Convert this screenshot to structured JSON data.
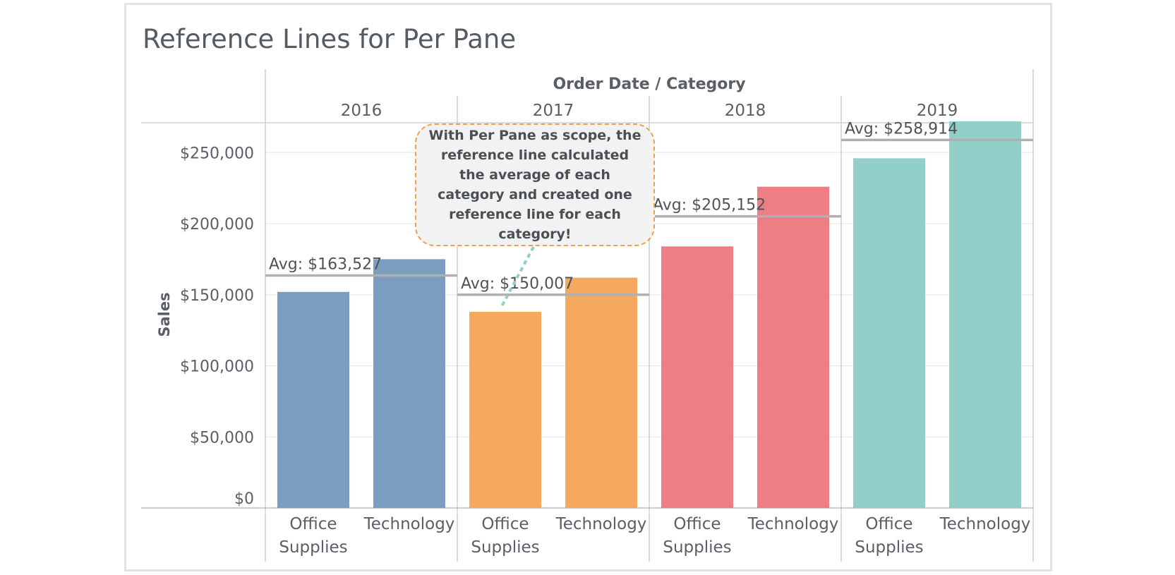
{
  "chart_data": {
    "type": "bar",
    "title": "Reference Lines for Per Pane",
    "column_header": "Order Date  /  Category",
    "xlabel": "",
    "ylabel": "Sales",
    "ylim": [
      0,
      270000
    ],
    "y_ticks": [
      {
        "value": 0,
        "label": "$0"
      },
      {
        "value": 50000,
        "label": "$50,000"
      },
      {
        "value": 100000,
        "label": "$100,000"
      },
      {
        "value": 150000,
        "label": "$150,000"
      },
      {
        "value": 200000,
        "label": "$200,000"
      },
      {
        "value": 250000,
        "label": "$250,000"
      }
    ],
    "grid": true,
    "panes": [
      {
        "year": "2016",
        "color": "#7b9ec0",
        "bars": [
          {
            "category": "Office Supplies",
            "value": 152000
          },
          {
            "category": "Technology",
            "value": 175000
          }
        ],
        "average": 163527,
        "average_label": "Avg: $163,527"
      },
      {
        "year": "2017",
        "color": "#f5a95e",
        "bars": [
          {
            "category": "Office Supplies",
            "value": 138000
          },
          {
            "category": "Technology",
            "value": 162000
          }
        ],
        "average": 150007,
        "average_label": "Avg: $150,007"
      },
      {
        "year": "2018",
        "color": "#ee7d84",
        "bars": [
          {
            "category": "Office Supplies",
            "value": 184000
          },
          {
            "category": "Technology",
            "value": 226000
          }
        ],
        "average": 205152,
        "average_label": "Avg: $205,152"
      },
      {
        "year": "2019",
        "color": "#93cfc9",
        "bars": [
          {
            "category": "Office Supplies",
            "value": 246000
          },
          {
            "category": "Technology",
            "value": 272000
          }
        ],
        "average": 258914,
        "average_label": "Avg: $258,914"
      }
    ],
    "category_labels": {
      "Office Supplies": [
        "Office",
        "Supplies"
      ],
      "Technology": [
        "Technology"
      ]
    },
    "annotation": "With Per Pane as scope, the reference line calculated the average of each category and created one reference line for each category!",
    "annotation_color": "#f0a04b",
    "annotation_connector_color": "#8fcfc8"
  }
}
